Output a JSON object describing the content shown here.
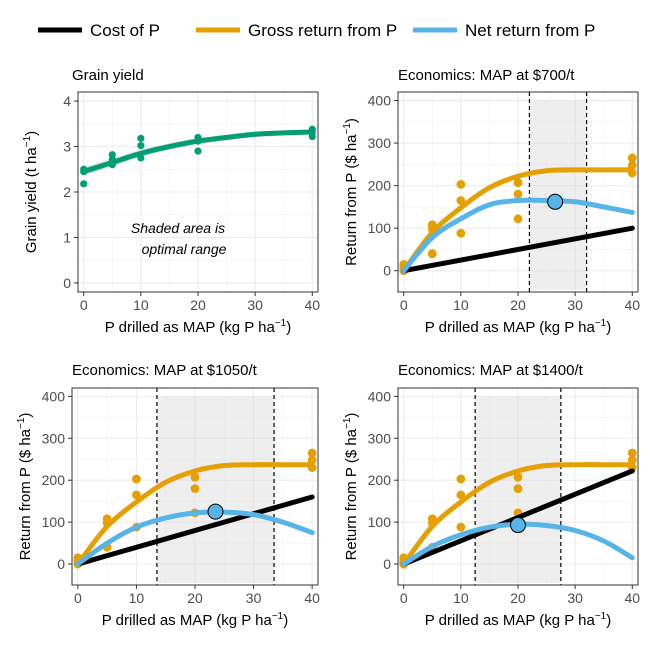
{
  "legend": {
    "items": [
      {
        "label": "Cost of P",
        "color": "#000000"
      },
      {
        "label": "Gross return from P",
        "color": "#E69F00"
      },
      {
        "label": "Net return from P",
        "color": "#56B4E9"
      }
    ]
  },
  "chart_data": [
    {
      "type": "scatter",
      "title": "Grain yield",
      "xlabel": "P drilled as MAP (kg P ha⁻¹)",
      "ylabel": "Grain yield (t ha⁻¹)",
      "xlim": [
        -1,
        41
      ],
      "ylim": [
        -0.2,
        4.2
      ],
      "xticks": [
        0,
        10,
        20,
        30,
        40
      ],
      "yticks": [
        0,
        1,
        2,
        3,
        4
      ],
      "annotation_lines": [
        "Shaded area is",
        "optimal range"
      ],
      "color": "#009E73",
      "points": [
        [
          0,
          2.18
        ],
        [
          0,
          2.45
        ],
        [
          0,
          2.5
        ],
        [
          5,
          2.6
        ],
        [
          5,
          2.72
        ],
        [
          5,
          2.82
        ],
        [
          10,
          2.75
        ],
        [
          10,
          3.02
        ],
        [
          10,
          3.18
        ],
        [
          20,
          2.9
        ],
        [
          20,
          3.12
        ],
        [
          20,
          3.2
        ],
        [
          40,
          3.22
        ],
        [
          40,
          3.32
        ],
        [
          40,
          3.38
        ]
      ],
      "fit": [
        [
          0,
          2.45
        ],
        [
          5,
          2.65
        ],
        [
          10,
          2.85
        ],
        [
          15,
          3.0
        ],
        [
          20,
          3.12
        ],
        [
          25,
          3.2
        ],
        [
          30,
          3.27
        ],
        [
          35,
          3.3
        ],
        [
          40,
          3.32
        ]
      ]
    },
    {
      "type": "line",
      "title": "Economics: MAP at $700/t",
      "xlabel": "P drilled as MAP (kg P ha⁻¹)",
      "ylabel": "Return from P ($ ha⁻¹)",
      "xlim": [
        -1,
        41
      ],
      "ylim": [
        -50,
        420
      ],
      "xticks": [
        0,
        10,
        20,
        30,
        40
      ],
      "yticks": [
        0,
        100,
        200,
        300,
        400
      ],
      "optimal_range": [
        22,
        32
      ],
      "optimum": [
        26.5,
        162
      ],
      "points": [
        [
          0,
          0
        ],
        [
          0,
          8
        ],
        [
          0,
          15
        ],
        [
          5,
          40
        ],
        [
          5,
          98
        ],
        [
          5,
          108
        ],
        [
          10,
          88
        ],
        [
          10,
          165
        ],
        [
          10,
          203
        ],
        [
          20,
          122
        ],
        [
          20,
          180
        ],
        [
          20,
          207
        ],
        [
          40,
          230
        ],
        [
          40,
          248
        ],
        [
          40,
          265
        ]
      ],
      "series": [
        {
          "name": "Cost of P",
          "x": [
            0,
            40
          ],
          "y": [
            0,
            100
          ]
        },
        {
          "name": "Gross return from P",
          "x": [
            0,
            5,
            10,
            15,
            20,
            25,
            30,
            35,
            40
          ],
          "y": [
            0,
            90,
            148,
            195,
            222,
            235,
            237,
            237,
            237
          ]
        },
        {
          "name": "Net return from P",
          "x": [
            0,
            5,
            10,
            15,
            20,
            25,
            30,
            35,
            40
          ],
          "y": [
            0,
            78,
            122,
            155,
            165,
            165,
            162,
            150,
            137
          ]
        }
      ]
    },
    {
      "type": "line",
      "title": "Economics: MAP at $1050/t",
      "xlabel": "P drilled as MAP (kg P ha⁻¹)",
      "ylabel": "Return from P ($ ha⁻¹)",
      "xlim": [
        -1,
        41
      ],
      "ylim": [
        -50,
        420
      ],
      "xticks": [
        0,
        10,
        20,
        30,
        40
      ],
      "yticks": [
        0,
        100,
        200,
        300,
        400
      ],
      "optimal_range": [
        13.5,
        33.5
      ],
      "optimum": [
        23.5,
        125
      ],
      "points": [
        [
          0,
          0
        ],
        [
          0,
          8
        ],
        [
          0,
          15
        ],
        [
          5,
          40
        ],
        [
          5,
          98
        ],
        [
          5,
          108
        ],
        [
          10,
          88
        ],
        [
          10,
          165
        ],
        [
          10,
          203
        ],
        [
          20,
          122
        ],
        [
          20,
          180
        ],
        [
          20,
          207
        ],
        [
          40,
          230
        ],
        [
          40,
          248
        ],
        [
          40,
          265
        ]
      ],
      "series": [
        {
          "name": "Cost of P",
          "x": [
            0,
            40
          ],
          "y": [
            0,
            160
          ]
        },
        {
          "name": "Gross return from P",
          "x": [
            0,
            5,
            10,
            15,
            20,
            25,
            30,
            35,
            40
          ],
          "y": [
            0,
            90,
            148,
            195,
            222,
            235,
            237,
            237,
            237
          ]
        },
        {
          "name": "Net return from P",
          "x": [
            0,
            5,
            10,
            15,
            20,
            25,
            30,
            35,
            40
          ],
          "y": [
            0,
            50,
            88,
            110,
            122,
            124,
            118,
            100,
            75
          ]
        }
      ]
    },
    {
      "type": "line",
      "title": "Economics: MAP at $1400/t",
      "xlabel": "P drilled as MAP (kg P ha⁻¹)",
      "ylabel": "Return from P ($ ha⁻¹)",
      "xlim": [
        -1,
        41
      ],
      "ylim": [
        -50,
        420
      ],
      "xticks": [
        0,
        10,
        20,
        30,
        40
      ],
      "yticks": [
        0,
        100,
        200,
        300,
        400
      ],
      "optimal_range": [
        12.5,
        27.5
      ],
      "optimum": [
        20,
        93
      ],
      "points": [
        [
          0,
          0
        ],
        [
          0,
          8
        ],
        [
          0,
          15
        ],
        [
          5,
          40
        ],
        [
          5,
          98
        ],
        [
          5,
          108
        ],
        [
          10,
          88
        ],
        [
          10,
          165
        ],
        [
          10,
          203
        ],
        [
          20,
          122
        ],
        [
          20,
          180
        ],
        [
          20,
          207
        ],
        [
          40,
          230
        ],
        [
          40,
          248
        ],
        [
          40,
          265
        ]
      ],
      "series": [
        {
          "name": "Cost of P",
          "x": [
            0,
            40
          ],
          "y": [
            0,
            222
          ]
        },
        {
          "name": "Gross return from P",
          "x": [
            0,
            5,
            10,
            15,
            20,
            25,
            30,
            35,
            40
          ],
          "y": [
            0,
            90,
            148,
            195,
            222,
            235,
            237,
            237,
            237
          ]
        },
        {
          "name": "Net return from P",
          "x": [
            0,
            5,
            10,
            15,
            20,
            25,
            30,
            35,
            40
          ],
          "y": [
            0,
            42,
            70,
            88,
            95,
            92,
            80,
            55,
            15
          ]
        }
      ]
    }
  ]
}
